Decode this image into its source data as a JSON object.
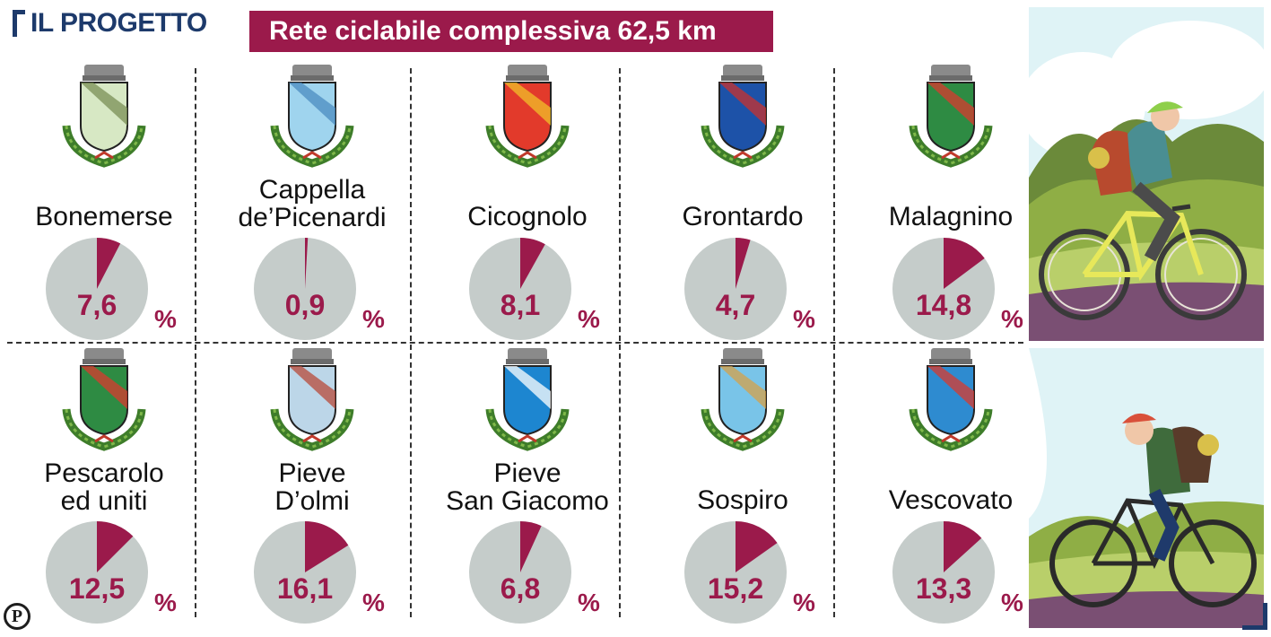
{
  "header": {
    "title": "IL PROGETTO"
  },
  "banner": {
    "text": "Rete ciclabile complessiva 62,5 km"
  },
  "colors": {
    "accent": "#9b1a4b",
    "pie_base": "#c5ccca",
    "navy": "#1d3a6b"
  },
  "chart_data": {
    "type": "pie",
    "title": "Rete ciclabile complessiva 62,5 km",
    "unit": "%",
    "categories": [
      "Bonemerse",
      "Cappella de'Picenardi",
      "Cicognolo",
      "Grontardo",
      "Malagnino",
      "Pescarolo ed uniti",
      "Pieve D'olmi",
      "Pieve San Giacomo",
      "Sospiro",
      "Vescovato"
    ],
    "values": [
      7.6,
      0.9,
      8.1,
      4.7,
      14.8,
      12.5,
      16.1,
      6.8,
      15.2,
      13.3
    ],
    "items": [
      {
        "name_lines": [
          "Bonemerse"
        ],
        "label": "7,6",
        "value": 7.6
      },
      {
        "name_lines": [
          "Cappella",
          "de’Picenardi"
        ],
        "label": "0,9",
        "value": 0.9
      },
      {
        "name_lines": [
          "Cicognolo"
        ],
        "label": "8,1",
        "value": 8.1
      },
      {
        "name_lines": [
          "Grontardo"
        ],
        "label": "4,7",
        "value": 4.7
      },
      {
        "name_lines": [
          "Malagnino"
        ],
        "label": "14,8",
        "value": 14.8
      },
      {
        "name_lines": [
          "Pescarolo",
          "ed uniti"
        ],
        "label": "12,5",
        "value": 12.5
      },
      {
        "name_lines": [
          "Pieve",
          "D’olmi"
        ],
        "label": "16,1",
        "value": 16.1
      },
      {
        "name_lines": [
          "Pieve",
          "San Giacomo"
        ],
        "label": "6,8",
        "value": 6.8
      },
      {
        "name_lines": [
          "Sospiro"
        ],
        "label": "15,2",
        "value": 15.2
      },
      {
        "name_lines": [
          "Vescovato"
        ],
        "label": "13,3",
        "value": 13.3
      }
    ]
  },
  "footer": {
    "publisher_logo": "P"
  },
  "icons": {
    "crest": "municipal-crest-icon",
    "cyclist": "cyclist-illustration"
  }
}
